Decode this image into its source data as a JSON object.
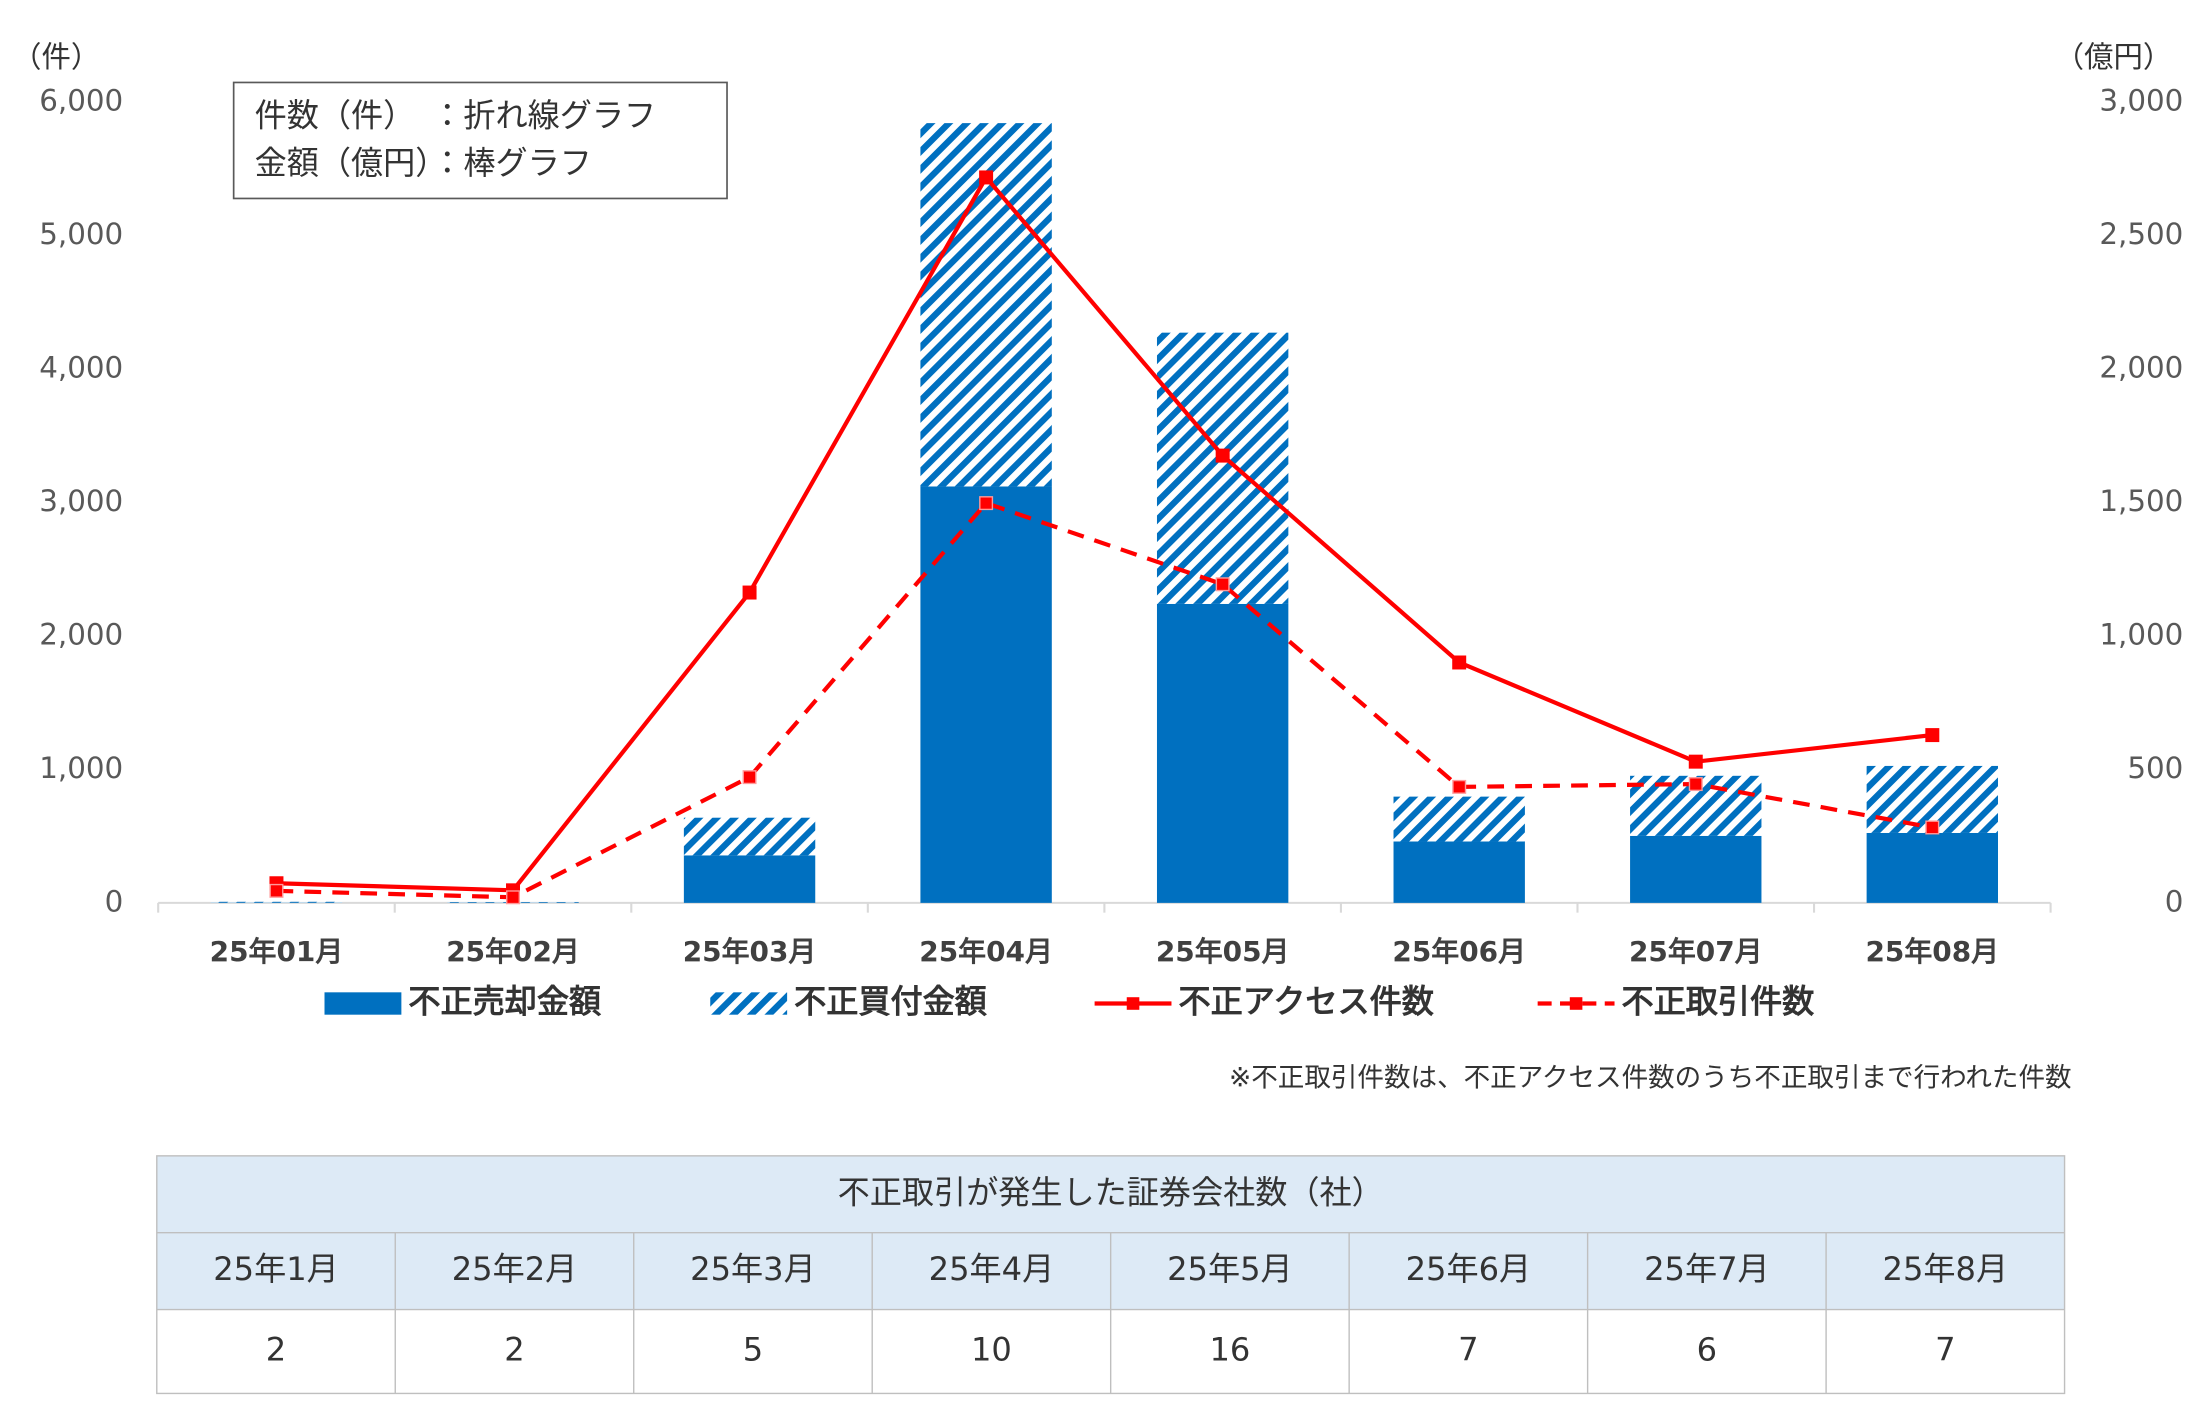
{
  "chart_data": {
    "type": "bar",
    "y_unit_label": "（件）",
    "y2_unit_label": "（億円）",
    "annotation_lines": [
      "件数（件）　：折れ線グラフ",
      "金額（億円）：棒グラフ"
    ],
    "note": "※不正取引件数は、不正アクセス件数のうち不正取引まで行われた件数",
    "categories": [
      "25年01月",
      "25年02月",
      "25年03月",
      "25年04月",
      "25年05月",
      "25年06月",
      "25年07月",
      "25年08月"
    ],
    "series": [
      {
        "name": "不正売却金額",
        "type": "bar",
        "axis": "y2",
        "color": "#0070c0",
        "hatch": false,
        "values": [
          1,
          1,
          178,
          1560,
          1120,
          230,
          251,
          262
        ]
      },
      {
        "name": "不正買付金額",
        "type": "bar",
        "axis": "y2",
        "color": "#0070c0",
        "hatch": true,
        "values": [
          3,
          2,
          141,
          1361,
          1016,
          168,
          225,
          251
        ]
      },
      {
        "name": "不正アクセス件数",
        "type": "line",
        "color": "#ff0000",
        "dashed": false,
        "values": [
          147,
          94,
          2325,
          5435,
          3351,
          1801,
          1058,
          1257
        ]
      },
      {
        "name": "不正取引件数",
        "type": "line",
        "color": "#ff0000",
        "dashed": true,
        "values": [
          90,
          42,
          942,
          2995,
          2387,
          869,
          890,
          565
        ]
      }
    ],
    "ylim": [
      0,
      6000
    ],
    "yticks": [
      0,
      {
        "value": 1000,
        "label": "1,000"
      },
      {
        "value": 2000,
        "label": "2,000"
      },
      {
        "value": 3000,
        "label": "3,000"
      },
      {
        "value": 4000,
        "label": "4,000"
      },
      {
        "value": 5000,
        "label": "5,000"
      },
      {
        "value": 6000,
        "label": "6,000"
      }
    ],
    "y2lim": [
      0,
      3000
    ],
    "y2ticks": [
      0,
      500,
      {
        "value": 1000,
        "label": "1,000"
      },
      {
        "value": 1500,
        "label": "1,500"
      },
      {
        "value": 2000,
        "label": "2,000"
      },
      {
        "value": 2500,
        "label": "2,500"
      },
      {
        "value": 3000,
        "label": "3,000"
      }
    ],
    "grid": false,
    "legend": "bottom"
  },
  "table": {
    "title": "不正取引が発生した証券会社数（社）",
    "header": [
      "25年1月",
      "25年2月",
      "25年3月",
      "25年4月",
      "25年5月",
      "25年6月",
      "25年7月",
      "25年8月"
    ],
    "rows": [
      [
        2,
        2,
        5,
        10,
        16,
        7,
        6,
        7
      ]
    ]
  }
}
